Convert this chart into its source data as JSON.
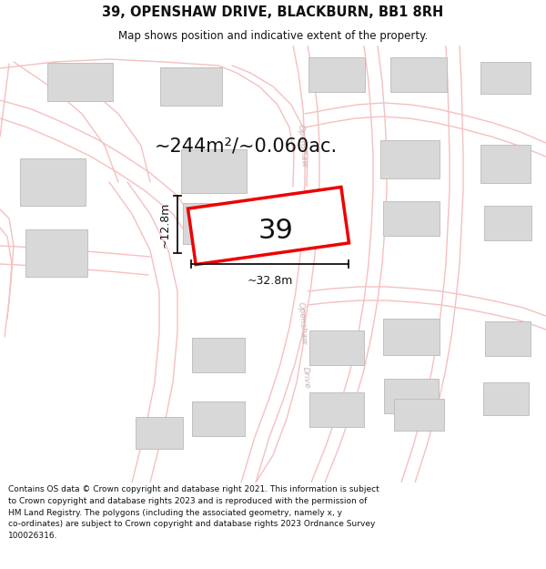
{
  "title": "39, OPENSHAW DRIVE, BLACKBURN, BB1 8RH",
  "subtitle": "Map shows position and indicative extent of the property.",
  "footer": "Contains OS data © Crown copyright and database right 2021. This information is subject\nto Crown copyright and database rights 2023 and is reproduced with the permission of\nHM Land Registry. The polygons (including the associated geometry, namely x, y\nco-ordinates) are subject to Crown copyright and database rights 2023 Ordnance Survey\n100026316.",
  "area_label": "~244m²/~0.060ac.",
  "plot_number": "39",
  "width_label": "~32.8m",
  "height_label": "~12.8m",
  "bg_color": "#ffffff",
  "map_bg": "#ffffff",
  "road_color": "#f5c0c0",
  "building_color": "#d8d8d8",
  "building_outline": "#c0c0c0",
  "plot_edge_color": "#ee0000",
  "road_label_color": "#c8b0b0",
  "title_color": "#111111",
  "footer_color": "#111111",
  "dim_color": "#111111"
}
